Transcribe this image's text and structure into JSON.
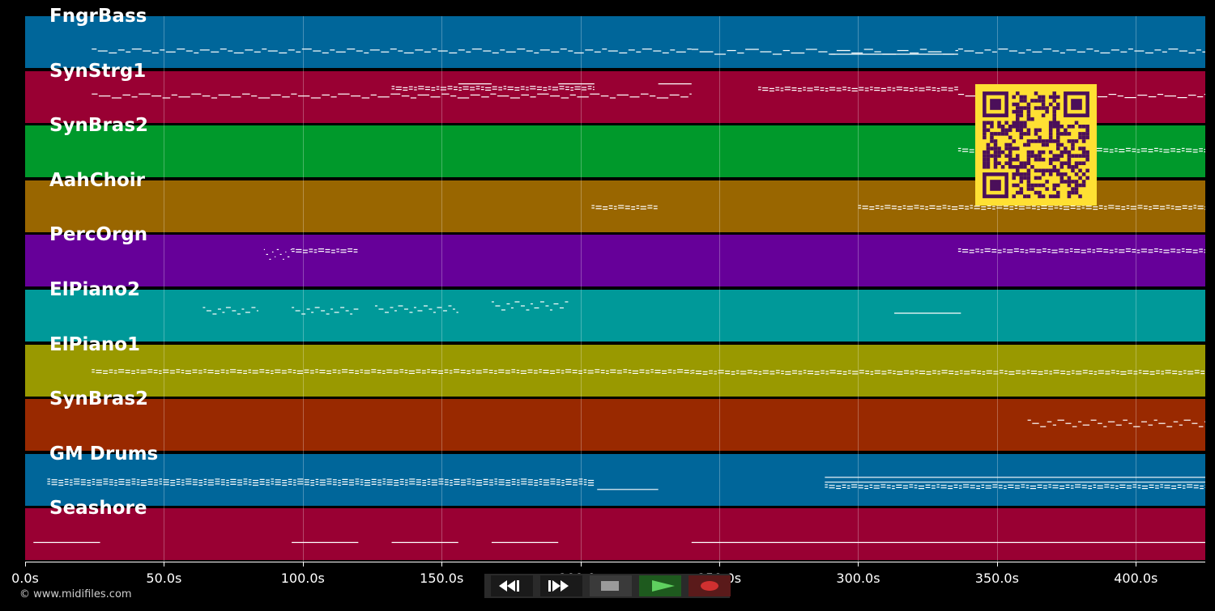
{
  "tracks": [
    {
      "name": "FngrBass",
      "color": "#00669a"
    },
    {
      "name": "SynStrg1",
      "color": "#990033"
    },
    {
      "name": "SynBras2",
      "color": "#00992b"
    },
    {
      "name": "AahChoir",
      "color": "#996600"
    },
    {
      "name": "PercOrgn",
      "color": "#660099"
    },
    {
      "name": "ElPiano2",
      "color": "#009999"
    },
    {
      "name": "ElPiano1",
      "color": "#999900"
    },
    {
      "name": "SynBras2",
      "color": "#992900"
    },
    {
      "name": "GM Drums",
      "color": "#00669a"
    },
    {
      "name": "Seashore",
      "color": "#990033"
    }
  ],
  "timeline": {
    "ticks": [
      "0.0s",
      "50.0s",
      "100.0s",
      "150.0s",
      "200.0s",
      "250.0s",
      "300.0s",
      "350.0s",
      "400.0s"
    ],
    "tick_seconds": [
      0,
      50,
      100,
      150,
      200,
      250,
      300,
      350,
      400
    ],
    "max_seconds": 425
  },
  "transport": {
    "buttons": [
      {
        "name": "rewind-button",
        "icon": "rewind-icon",
        "bg": "#1a1a1a"
      },
      {
        "name": "fast-forward-button",
        "icon": "fast-forward-icon",
        "bg": "#1a1a1a"
      },
      {
        "name": "stop-button",
        "icon": "stop-icon",
        "bg": "#3a3a3a"
      },
      {
        "name": "play-button",
        "icon": "play-icon",
        "bg": "#1e5a1e"
      },
      {
        "name": "record-button",
        "icon": "record-icon",
        "bg": "#5a1a1a"
      }
    ]
  },
  "qr": {
    "fg": "#ffe033",
    "bg": "#4b0f5a"
  },
  "copyright": "© www.midifiles.com"
}
